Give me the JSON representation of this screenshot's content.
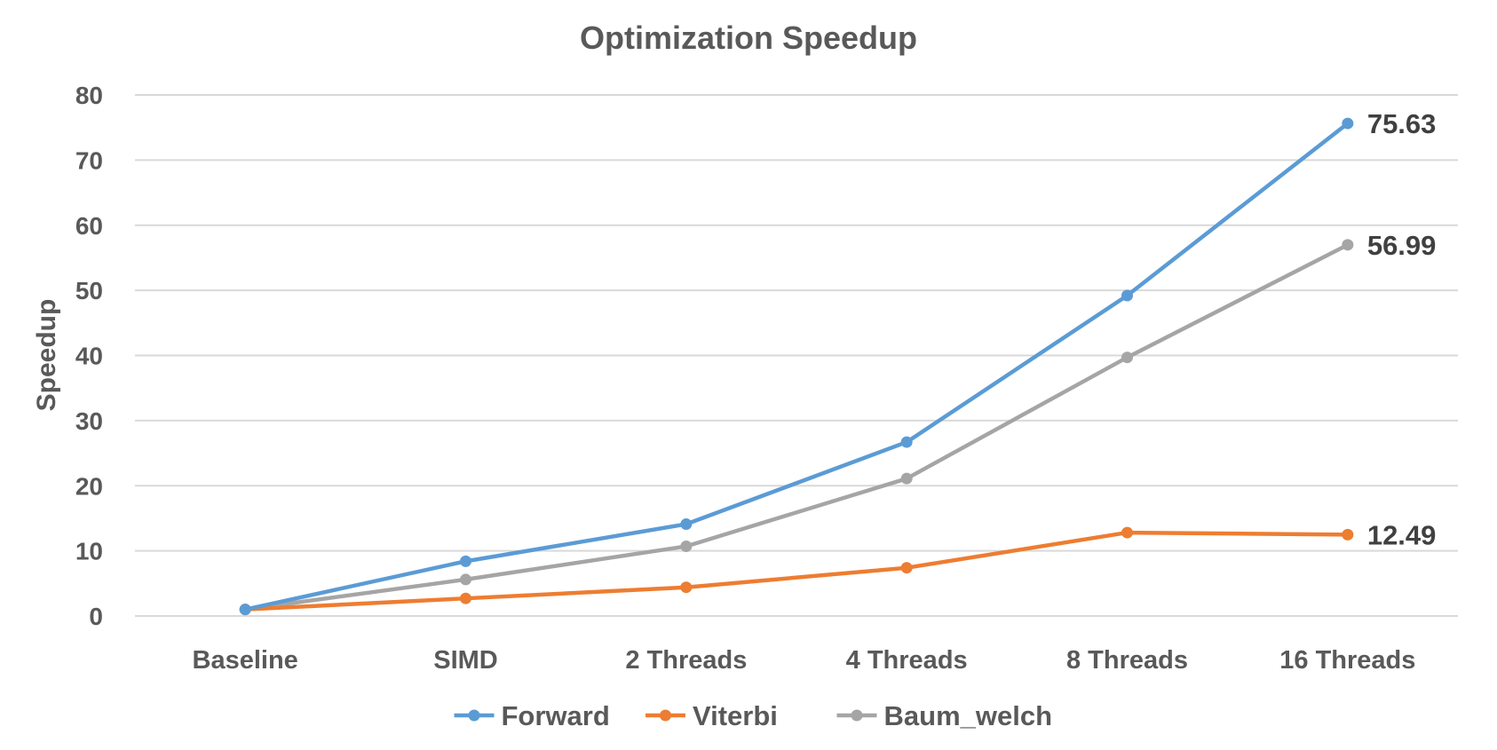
{
  "chart_data": {
    "type": "line",
    "title": "Optimization Speedup",
    "xlabel": "",
    "ylabel": "Speedup",
    "categories": [
      "Baseline",
      "SIMD",
      "2 Threads",
      "4 Threads",
      "8 Threads",
      "16 Threads"
    ],
    "ylim": [
      0,
      80
    ],
    "yticks": [
      0,
      10,
      20,
      30,
      40,
      50,
      60,
      70,
      80
    ],
    "grid": true,
    "legend_position": "bottom",
    "series": [
      {
        "name": "Forward",
        "color": "#5B9BD5",
        "values": [
          1,
          8.4,
          14.1,
          26.7,
          49.2,
          75.63
        ],
        "end_label": "75.63"
      },
      {
        "name": "Viterbi",
        "color": "#ED7D31",
        "values": [
          1,
          2.7,
          4.4,
          7.4,
          12.8,
          12.49
        ],
        "end_label": "12.49"
      },
      {
        "name": "Baum_welch",
        "color": "#A5A5A5",
        "values": [
          1,
          5.6,
          10.7,
          21.1,
          39.7,
          56.99
        ],
        "end_label": "56.99"
      }
    ]
  }
}
